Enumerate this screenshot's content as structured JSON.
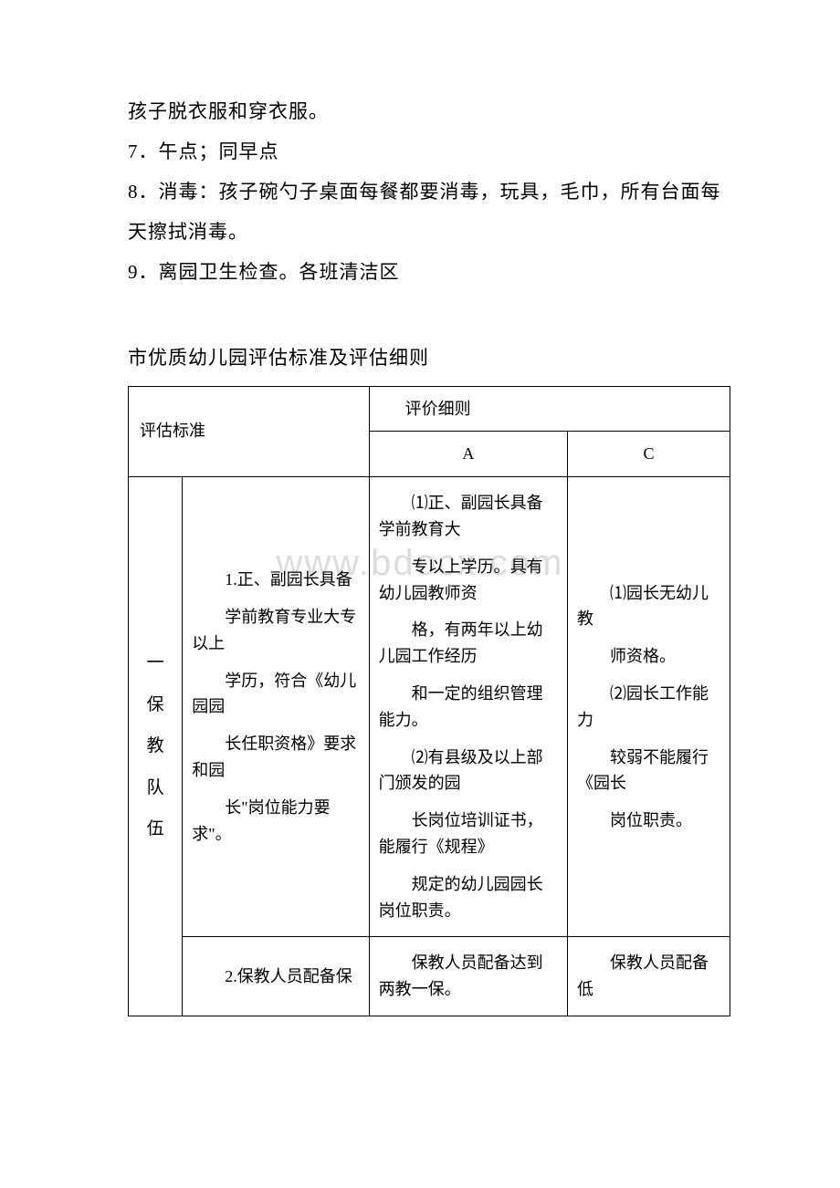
{
  "watermark": "www.bdocx.com",
  "paragraphs": {
    "p1": "孩子脱衣服和穿衣服。",
    "p2": "7．午点；同早点",
    "p3": "8．消毒：孩子碗勺子桌面每餐都要消毒，玩具，毛巾，所有台面每天擦拭消毒。",
    "p4": "9．离园卫生检查。各班清洁区"
  },
  "table_title": "市优质幼儿园评估标准及评估细则",
  "table": {
    "header": {
      "left": "评估标准",
      "right_top": "评价细则",
      "col_a": "A",
      "col_c": "C"
    },
    "row1": {
      "category": {
        "c1": "一",
        "c2": "保",
        "c3": "教",
        "c4": "队",
        "c5": "伍"
      },
      "standard": {
        "s1": "1.正、副园长具备",
        "s2": "学前教育专业大专以上",
        "s3": "学历，符合《幼儿园园",
        "s4": "长任职资格》要求和园",
        "s5": "长\"岗位能力要求\"。"
      },
      "detail_a": {
        "a1": "⑴正、副园长具备学前教育大",
        "a2": "专以上学历。具有幼儿园教师资",
        "a3": "格，有两年以上幼儿园工作经历",
        "a4": "和一定的组织管理能力。",
        "a5": "⑵有县级及以上部门颁发的园",
        "a6": "长岗位培训证书，能履行《规程》",
        "a7": "规定的幼儿园园长岗位职责。"
      },
      "detail_c": {
        "c1": "⑴园长无幼儿教",
        "c2": "师资格。",
        "c3": "⑵园长工作能力",
        "c4": "较弱不能履行《园长",
        "c5": "岗位职责。"
      }
    },
    "row2": {
      "standard": "2.保教人员配备保",
      "detail_a": "保教人员配备达到两教一保。",
      "detail_c": "保教人员配备低"
    }
  },
  "colors": {
    "background": "#ffffff",
    "text": "#000000",
    "border": "#000000",
    "watermark": "#dcdcdc"
  },
  "layout": {
    "col_widths": [
      "9%",
      "31%",
      "33%",
      "27%"
    ]
  }
}
